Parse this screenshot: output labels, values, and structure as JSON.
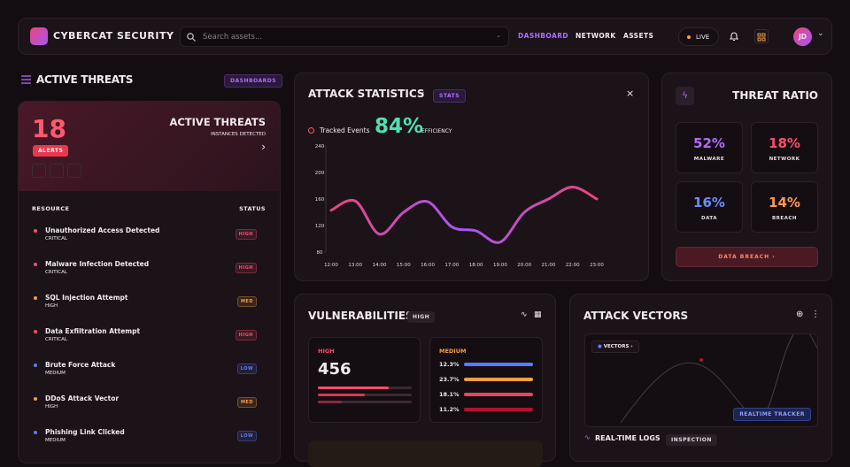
{
  "header": {
    "brand": "CYBERCAT SECURITY",
    "search": "Search assets...",
    "nav": [
      "DASHBOARD",
      "NETWORK",
      "ASSETS"
    ],
    "live": "LIVE",
    "avatar": "JD"
  },
  "sidebar": {
    "title": "ACTIVE THREATS",
    "badge": "DASHBOARDS"
  },
  "threat_card": {
    "count": "18",
    "badge": "ALERTS",
    "title": "ACTIVE THREATS",
    "subtitle": "INSTANCES DETECTED"
  },
  "table": {
    "headers": [
      "RESOURCE",
      "STATUS"
    ],
    "rows": [
      {
        "name": "Unauthorized Access Detected",
        "severity": "CRITICAL",
        "status": "HIGH",
        "color": "#ff4d6d"
      },
      {
        "name": "Malware Infection Detected",
        "severity": "CRITICAL",
        "status": "HIGH",
        "color": "#ff4d6d"
      },
      {
        "name": "SQL Injection Attempt",
        "severity": "HIGH",
        "status": "MED",
        "color": "#f59e42"
      },
      {
        "name": "Data Exfiltration Attempt",
        "severity": "CRITICAL",
        "status": "HIGH",
        "color": "#ff4d6d"
      },
      {
        "name": "Brute Force Attack",
        "severity": "MEDIUM",
        "status": "LOW",
        "color": "#5b7cfa"
      },
      {
        "name": "DDoS Attack Vector",
        "severity": "HIGH",
        "status": "MED",
        "color": "#f59e42"
      },
      {
        "name": "Phishing Link Clicked",
        "severity": "MEDIUM",
        "status": "LOW",
        "color": "#5b7cfa"
      }
    ]
  },
  "attack_statistics": {
    "title": "ATTACK STATISTICS",
    "badge": "STATS",
    "legend": "Tracked Events",
    "metric": "84%",
    "metric_label": "EFFICIENCY",
    "chart": {
      "type": "line",
      "categories": [
        "12:00",
        "13:00",
        "14:00",
        "15:00",
        "16:00",
        "17:00",
        "18:00",
        "19:00",
        "20:00",
        "21:00",
        "22:00",
        "23:00"
      ],
      "values": [
        143,
        157,
        107,
        140,
        156,
        118,
        112,
        95,
        140,
        160,
        178,
        160
      ],
      "colors": [
        "#e8467a",
        "#a855f7"
      ],
      "ylim": [
        80,
        240
      ],
      "yticks": [
        80,
        120,
        160,
        200,
        240
      ]
    }
  },
  "threat_ratio": {
    "title": "THREAT RATIO",
    "tiles": [
      {
        "value": "52%",
        "label": "MALWARE",
        "color": "#b06cff"
      },
      {
        "value": "18%",
        "label": "NETWORK",
        "color": "#ff4d6d"
      },
      {
        "value": "16%",
        "label": "DATA",
        "color": "#6b8cff"
      },
      {
        "value": "14%",
        "label": "BREACH",
        "color": "#ff9a4a"
      }
    ],
    "button": "DATA BREACH"
  },
  "vulnerabilities": {
    "title": "VULNERABILITIES",
    "badge": "HIGH",
    "high_label": "HIGH",
    "high_value": "456",
    "medium_label": "MEDIUM",
    "medium_rows": [
      {
        "value": "12.3%",
        "color": "#5b7cfa"
      },
      {
        "value": "23.7%",
        "color": "#f59e42"
      },
      {
        "value": "18.1%",
        "color": "#e8465e"
      },
      {
        "value": "11.2%",
        "color": "#b3122e"
      }
    ]
  },
  "attack_vectors": {
    "title": "ATTACK VECTORS",
    "legend": "VECTORS",
    "tracker": "REALTIME TRACKER",
    "logs_title": "REAL-TIME LOGS",
    "logs_badge": "INSPECTION"
  }
}
